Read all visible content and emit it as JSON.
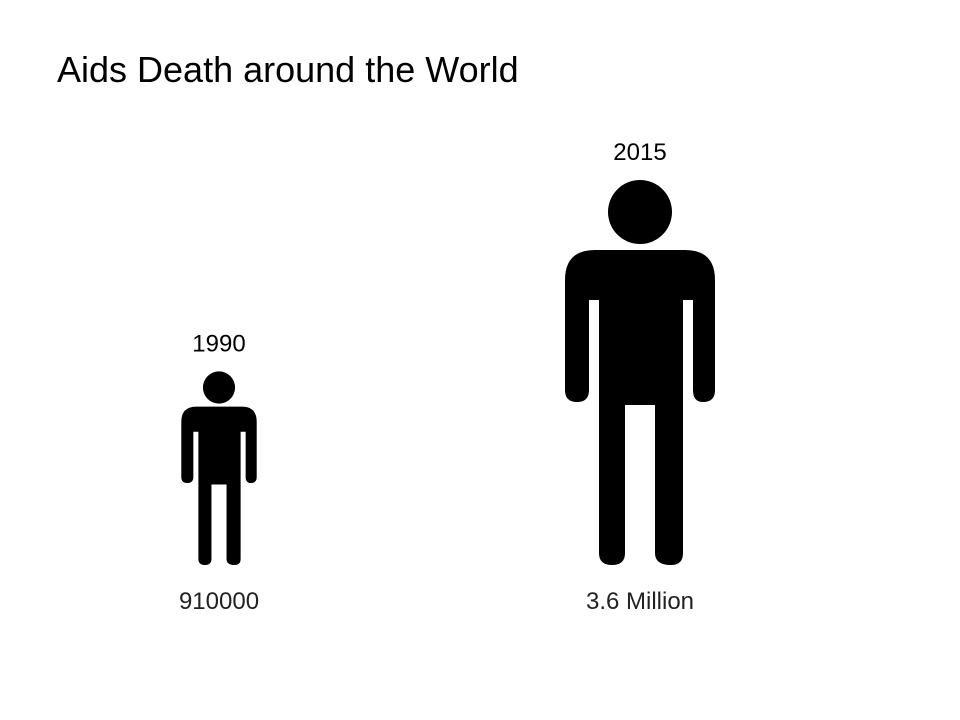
{
  "title": "Aids Death around the World",
  "chart_data": {
    "type": "pictograph",
    "title": "Aids Death around the World",
    "categories": [
      "1990",
      "2015"
    ],
    "values": [
      910000,
      3600000
    ],
    "value_labels": [
      "910000",
      "3.6 Million"
    ],
    "icon": "person-icon",
    "colors": {
      "icon": "#000000",
      "category_text": "#000000",
      "value_text": "#222222"
    },
    "legend": "none",
    "grid": false
  }
}
